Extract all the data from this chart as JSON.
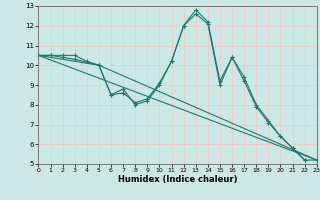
{
  "xlabel": "Humidex (Indice chaleur)",
  "xlim": [
    0,
    23
  ],
  "ylim": [
    5,
    13
  ],
  "xticks": [
    0,
    1,
    2,
    3,
    4,
    5,
    6,
    7,
    8,
    9,
    10,
    11,
    12,
    13,
    14,
    15,
    16,
    17,
    18,
    19,
    20,
    21,
    22,
    23
  ],
  "yticks": [
    5,
    6,
    7,
    8,
    9,
    10,
    11,
    12,
    13
  ],
  "bg_color": "#cce8e4",
  "grid_color": "#f0c8c8",
  "line_color": "#1a7a6e",
  "s1_x": [
    0,
    1,
    2,
    3,
    4,
    5,
    6,
    7,
    8,
    9,
    10,
    11,
    12,
    13,
    14,
    15,
    16,
    17,
    18,
    19,
    20,
    21,
    22
  ],
  "s1_y": [
    10.5,
    10.5,
    10.5,
    10.5,
    10.2,
    10.0,
    8.5,
    8.8,
    8.0,
    8.2,
    9.0,
    10.2,
    12.0,
    12.8,
    12.2,
    9.2,
    10.4,
    9.4,
    8.0,
    7.2,
    6.4,
    5.8,
    5.2
  ],
  "s2_x": [
    0,
    1,
    2,
    3,
    5,
    6,
    7,
    8,
    9,
    10,
    11,
    12,
    13,
    14,
    15,
    16,
    17,
    18,
    19,
    20,
    21,
    22,
    23
  ],
  "s2_y": [
    10.5,
    10.5,
    10.4,
    10.3,
    10.0,
    8.5,
    8.6,
    8.1,
    8.3,
    9.1,
    10.2,
    12.0,
    12.6,
    12.1,
    9.0,
    10.4,
    9.2,
    7.9,
    7.1,
    6.4,
    5.8,
    5.2,
    5.2
  ],
  "trend1_x": [
    0,
    23
  ],
  "trend1_y": [
    10.5,
    5.2
  ],
  "trend2_x": [
    0,
    5,
    23
  ],
  "trend2_y": [
    10.5,
    10.0,
    5.2
  ]
}
